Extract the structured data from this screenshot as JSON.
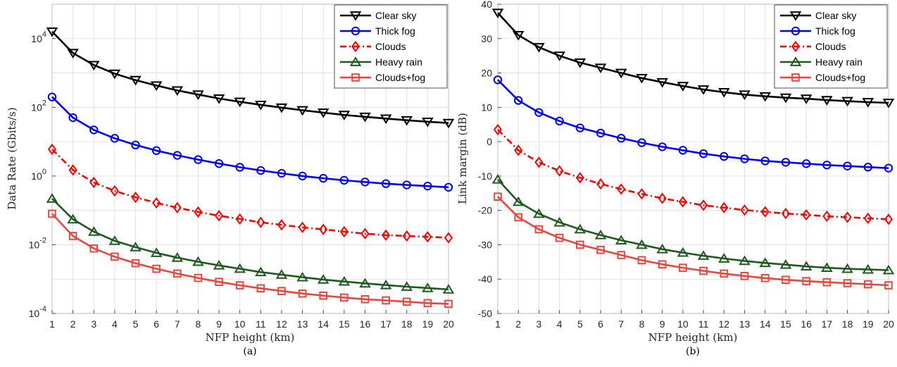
{
  "chart_data": [
    {
      "type": "line",
      "caption": "(a)",
      "xlabel": "NFP height (km)",
      "ylabel": "Data Rate (Gbits/s)",
      "yscale": "log",
      "xlim": [
        1,
        20
      ],
      "ylim_exp": [
        -4,
        5
      ],
      "grid": true,
      "legend_position": "top-right",
      "x": [
        1,
        2,
        3,
        4,
        5,
        6,
        7,
        8,
        9,
        10,
        11,
        12,
        13,
        14,
        15,
        16,
        17,
        18,
        19,
        20
      ],
      "x_ticks": [
        "1",
        "2",
        "3",
        "4",
        "5",
        "6",
        "7",
        "8",
        "9",
        "10",
        "11",
        "12",
        "13",
        "14",
        "15",
        "16",
        "17",
        "18",
        "19",
        "20"
      ],
      "y_ticks": [
        {
          "exp": -4,
          "base": "10",
          "sup": "-4"
        },
        {
          "exp": -2,
          "base": "10",
          "sup": "-2"
        },
        {
          "exp": 0,
          "base": "10",
          "sup": "0"
        },
        {
          "exp": 2,
          "base": "10",
          "sup": "2"
        },
        {
          "exp": 4,
          "base": "10",
          "sup": "4"
        }
      ],
      "series": [
        {
          "name": "Clear sky",
          "color": "#000000",
          "marker": "triangle-down",
          "dash": "solid",
          "values": [
            16000,
            3800,
            1700,
            950,
            620,
            430,
            310,
            235,
            180,
            145,
            118,
            98,
            82,
            70,
            60,
            53,
            47,
            42,
            38,
            35
          ]
        },
        {
          "name": "Thick fog",
          "color": "#0000ff",
          "marker": "circle",
          "dash": "solid",
          "values": [
            200,
            50,
            22,
            12.5,
            8,
            5.5,
            4,
            3,
            2.3,
            1.8,
            1.45,
            1.2,
            1.0,
            0.86,
            0.75,
            0.67,
            0.6,
            0.55,
            0.51,
            0.47
          ]
        },
        {
          "name": "Clouds",
          "color": "#ff0000",
          "marker": "diamond",
          "dash": "dashdot",
          "values": [
            6,
            1.5,
            0.65,
            0.37,
            0.24,
            0.165,
            0.12,
            0.09,
            0.07,
            0.056,
            0.045,
            0.038,
            0.032,
            0.028,
            0.024,
            0.021,
            0.019,
            0.018,
            0.017,
            0.016
          ]
        },
        {
          "name": "Heavy rain",
          "color": "#1e5a1e",
          "marker": "triangle-up",
          "dash": "solid",
          "values": [
            0.22,
            0.055,
            0.024,
            0.013,
            0.0085,
            0.0058,
            0.0042,
            0.0032,
            0.0025,
            0.002,
            0.0016,
            0.00135,
            0.00113,
            0.00097,
            0.00085,
            0.00075,
            0.00067,
            0.0006,
            0.00055,
            0.0005
          ]
        },
        {
          "name": "Clouds+fog",
          "color": "#e8473e",
          "marker": "square",
          "dash": "solid",
          "values": [
            0.08,
            0.018,
            0.0078,
            0.0045,
            0.0029,
            0.002,
            0.00145,
            0.00108,
            0.00083,
            0.00066,
            0.00054,
            0.00045,
            0.00038,
            0.00033,
            0.00029,
            0.00026,
            0.00024,
            0.00022,
            0.0002,
            0.00019
          ]
        }
      ]
    },
    {
      "type": "line",
      "caption": "(b)",
      "xlabel": "NFP height (km)",
      "ylabel": "Link margin (dB)",
      "yscale": "linear",
      "xlim": [
        1,
        20
      ],
      "ylim": [
        -50,
        40
      ],
      "grid": true,
      "legend_position": "top-right",
      "x": [
        1,
        2,
        3,
        4,
        5,
        6,
        7,
        8,
        9,
        10,
        11,
        12,
        13,
        14,
        15,
        16,
        17,
        18,
        19,
        20
      ],
      "x_ticks": [
        "1",
        "2",
        "3",
        "4",
        "5",
        "6",
        "7",
        "8",
        "9",
        "10",
        "11",
        "12",
        "13",
        "14",
        "15",
        "16",
        "17",
        "18",
        "19",
        "20"
      ],
      "y_ticks": [
        "-50",
        "-40",
        "-30",
        "-20",
        "-10",
        "0",
        "10",
        "20",
        "30",
        "40"
      ],
      "y_tick_values": [
        -50,
        -40,
        -30,
        -20,
        -10,
        0,
        10,
        20,
        30,
        40
      ],
      "series": [
        {
          "name": "Clear sky",
          "color": "#000000",
          "marker": "triangle-down",
          "dash": "solid",
          "values": [
            37.5,
            31,
            27.5,
            25,
            23,
            21.5,
            20,
            18.5,
            17.3,
            16.2,
            15.2,
            14.4,
            13.7,
            13.2,
            12.8,
            12.5,
            12.1,
            11.8,
            11.5,
            11.3
          ]
        },
        {
          "name": "Thick fog",
          "color": "#0000ff",
          "marker": "circle",
          "dash": "solid",
          "values": [
            18,
            12,
            8.5,
            6,
            4,
            2.5,
            1,
            -0.3,
            -1.5,
            -2.5,
            -3.5,
            -4.3,
            -5,
            -5.6,
            -6,
            -6.4,
            -6.8,
            -7.1,
            -7.4,
            -7.7
          ]
        },
        {
          "name": "Clouds",
          "color": "#ff0000",
          "marker": "diamond",
          "dash": "dashdot",
          "values": [
            3.5,
            -2.5,
            -6,
            -8.5,
            -10.5,
            -12.3,
            -13.8,
            -15.2,
            -16.5,
            -17.5,
            -18.5,
            -19.2,
            -19.9,
            -20.4,
            -20.9,
            -21.3,
            -21.7,
            -22,
            -22.3,
            -22.6
          ]
        },
        {
          "name": "Heavy rain",
          "color": "#1e5a1e",
          "marker": "triangle-up",
          "dash": "solid",
          "values": [
            -11,
            -17.5,
            -21,
            -23.5,
            -25.5,
            -27.2,
            -28.7,
            -30,
            -31.3,
            -32.3,
            -33.2,
            -34,
            -34.7,
            -35.3,
            -35.8,
            -36.3,
            -36.7,
            -37,
            -37.2,
            -37.4
          ]
        },
        {
          "name": "Clouds+fog",
          "color": "#e8473e",
          "marker": "square",
          "dash": "solid",
          "values": [
            -16,
            -22,
            -25.5,
            -28,
            -30,
            -31.5,
            -33,
            -34.5,
            -35.7,
            -36.7,
            -37.6,
            -38.4,
            -39.1,
            -39.7,
            -40.2,
            -40.6,
            -40.9,
            -41.2,
            -41.5,
            -41.8
          ]
        }
      ]
    }
  ]
}
